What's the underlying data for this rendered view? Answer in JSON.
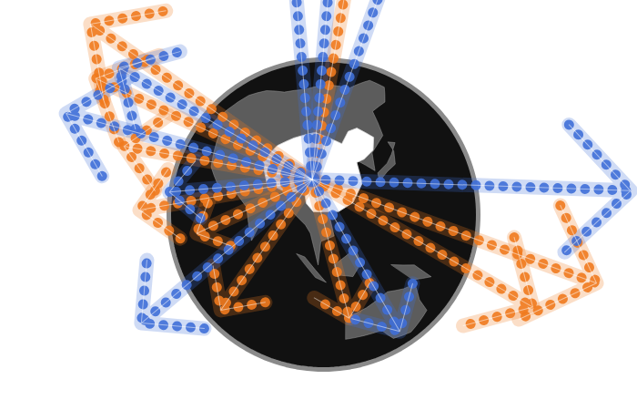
{
  "chart_data": {
    "type": "spike map",
    "tick_labels": false,
    "sphere_color": "#111111",
    "length_lim": [
      0,
      100
    ],
    "land": {
      "color": "#5c5c5c",
      "polygons": [
        [
          [
            26,
            41
          ],
          [
            40,
            42
          ],
          [
            48,
            30
          ],
          [
            56,
            25
          ],
          [
            60,
            25
          ],
          [
            67,
            24
          ],
          [
            73,
            20
          ],
          [
            77,
            8
          ],
          [
            80,
            15
          ],
          [
            88,
            22
          ],
          [
            92,
            21
          ],
          [
            98,
            16
          ],
          [
            100,
            13
          ],
          [
            103,
            1
          ],
          [
            104,
            10
          ],
          [
            109,
            12
          ],
          [
            107,
            21
          ],
          [
            117,
            24
          ],
          [
            122,
            31
          ],
          [
            121,
            40
          ],
          [
            129,
            35
          ],
          [
            130,
            42
          ],
          [
            140,
            48
          ],
          [
            143,
            59
          ],
          [
            160,
            61
          ],
          [
            180,
            66
          ],
          [
            180,
            72
          ],
          [
            140,
            73
          ],
          [
            110,
            77
          ],
          [
            80,
            73
          ],
          [
            60,
            69
          ],
          [
            40,
            66
          ],
          [
            30,
            60
          ],
          [
            26,
            41
          ]
        ],
        [
          [
            114,
            -22
          ],
          [
            122,
            -18
          ],
          [
            130,
            -12
          ],
          [
            137,
            -12
          ],
          [
            142,
            -11
          ],
          [
            146,
            -19
          ],
          [
            153,
            -26
          ],
          [
            150,
            -37
          ],
          [
            140,
            -38
          ],
          [
            131,
            -31
          ],
          [
            115,
            -34
          ],
          [
            114,
            -22
          ]
        ],
        [
          [
            109,
            1
          ],
          [
            117,
            7
          ],
          [
            119,
            1
          ],
          [
            116,
            -4
          ],
          [
            110,
            -3
          ],
          [
            109,
            1
          ]
        ],
        [
          [
            95,
            5
          ],
          [
            98,
            4
          ],
          [
            106,
            -6
          ],
          [
            102,
            -4
          ],
          [
            95,
            5
          ]
        ],
        [
          [
            130,
            31
          ],
          [
            135,
            34
          ],
          [
            140,
            36
          ],
          [
            142,
            41
          ],
          [
            141,
            45
          ],
          [
            145,
            44
          ],
          [
            140,
            40
          ],
          [
            136,
            37
          ],
          [
            130,
            34
          ],
          [
            130,
            31
          ]
        ],
        [
          [
            131,
            -1
          ],
          [
            141,
            -3
          ],
          [
            150,
            -10
          ],
          [
            141,
            -9
          ],
          [
            131,
            -1
          ]
        ]
      ]
    },
    "highlight": {
      "color": "#ffffff",
      "polygons": [
        [
          [
            75,
            38
          ],
          [
            80,
            30
          ],
          [
            88,
            28
          ],
          [
            97,
            28
          ],
          [
            98,
            24
          ],
          [
            101,
            21
          ],
          [
            108,
            21
          ],
          [
            111,
            21
          ],
          [
            117,
            24
          ],
          [
            122,
            31
          ],
          [
            121,
            39
          ],
          [
            125,
            40
          ],
          [
            131,
            43
          ],
          [
            134,
            48
          ],
          [
            126,
            53
          ],
          [
            120,
            52
          ],
          [
            115,
            47
          ],
          [
            100,
            52
          ],
          [
            88,
            49
          ],
          [
            80,
            45
          ],
          [
            75,
            38
          ]
        ]
      ]
    },
    "series": [
      {
        "color": "#f07a1e",
        "values": [
          {
            "lon": 100,
            "lat": 33,
            "angle": -65,
            "length": 75
          },
          {
            "lon": 100,
            "lat": 33,
            "angle": -55,
            "length": 85
          },
          {
            "lon": 100,
            "lat": 33,
            "angle": -80,
            "length": 60
          },
          {
            "lon": 100,
            "lat": 33,
            "angle": 10,
            "length": 95
          },
          {
            "lon": 100,
            "lat": 33,
            "angle": -100,
            "length": 55
          },
          {
            "lon": 100,
            "lat": 33,
            "angle": 110,
            "length": 95
          },
          {
            "lon": 100,
            "lat": 33,
            "angle": 120,
            "length": 80
          },
          {
            "lon": 100,
            "lat": 33,
            "angle": -115,
            "length": 40
          },
          {
            "lon": 100,
            "lat": 33,
            "angle": 165,
            "length": 45
          },
          {
            "lon": 100,
            "lat": 33,
            "angle": -145,
            "length": 50
          }
        ]
      },
      {
        "color": "#3f6fd8",
        "values": [
          {
            "lon": 100,
            "lat": 33,
            "angle": -60,
            "length": 70
          },
          {
            "lon": 100,
            "lat": 33,
            "angle": -5,
            "length": 100
          },
          {
            "lon": 100,
            "lat": 33,
            "angle": 20,
            "length": 90
          },
          {
            "lon": 100,
            "lat": 33,
            "angle": 92,
            "length": 100
          },
          {
            "lon": 100,
            "lat": 33,
            "angle": -95,
            "length": 45
          },
          {
            "lon": 100,
            "lat": 33,
            "angle": -130,
            "length": 70
          },
          {
            "lon": 100,
            "lat": 33,
            "angle": 150,
            "length": 55
          },
          {
            "lon": 100,
            "lat": 33,
            "angle": -75,
            "length": 80
          },
          {
            "lon": 100,
            "lat": 33,
            "angle": 5,
            "length": 100
          }
        ]
      }
    ]
  }
}
